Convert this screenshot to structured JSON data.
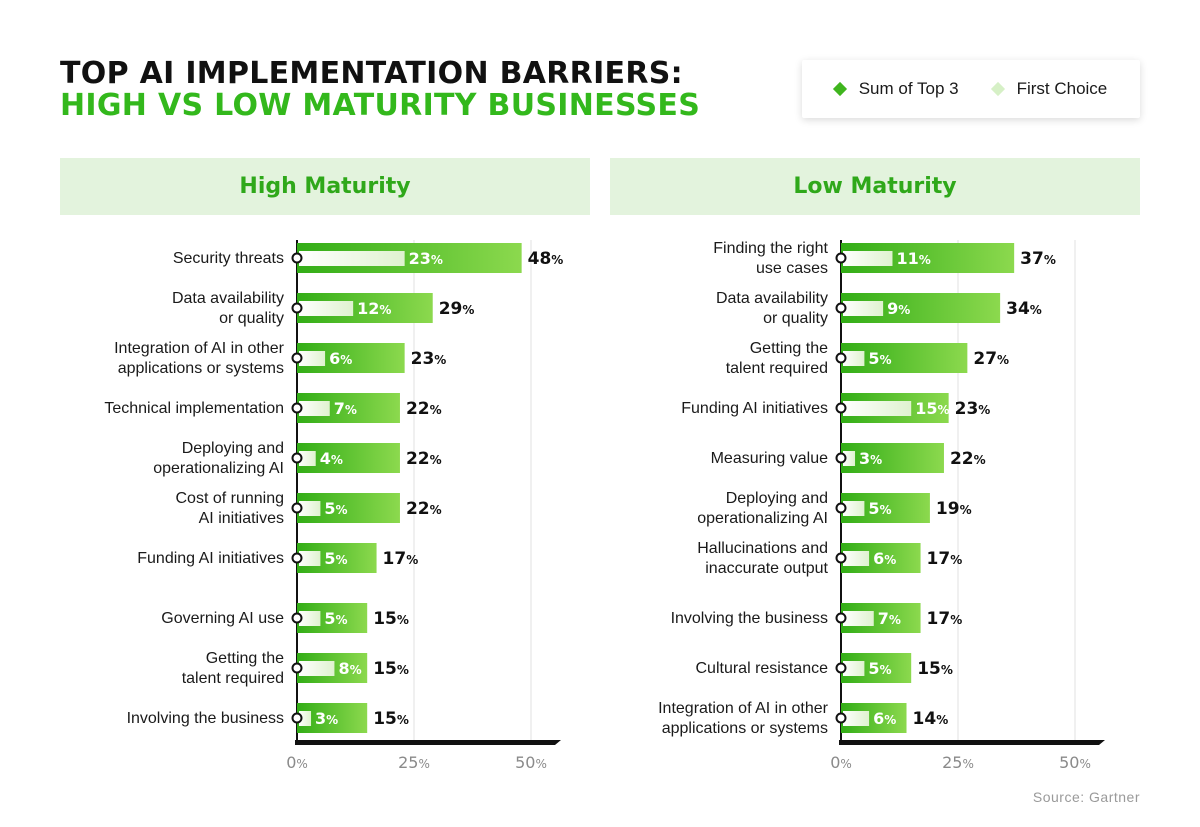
{
  "title_line1": "TOP AI IMPLEMENTATION BARRIERS:",
  "title_line2": "HIGH VS LOW MATURITY BUSINESSES",
  "legend": {
    "sum_label": "Sum of Top 3",
    "first_label": "First Choice"
  },
  "source": "Source: Gartner",
  "colors": {
    "bar_dark": "#3fb51e",
    "bar_light": "#7dd444",
    "first_choice": "#e6f5da",
    "title_green": "#33b81c",
    "header_bg": "#e3f3dd"
  },
  "chart_data": [
    {
      "type": "bar",
      "title": "High Maturity",
      "categories": [
        "Security threats",
        "Data availability\nor quality",
        "Integration of AI in other\napplications or systems",
        "Technical implementation",
        "Deploying and\noperationalizing AI",
        "Cost of running\nAI initiatives",
        "Funding AI initiatives",
        "Governing AI use",
        "Getting the\ntalent required",
        "Involving the business"
      ],
      "series": [
        {
          "name": "Sum of Top 3",
          "values": [
            48,
            29,
            23,
            22,
            22,
            22,
            17,
            15,
            15,
            15
          ]
        },
        {
          "name": "First Choice",
          "values": [
            23,
            12,
            6,
            7,
            4,
            5,
            5,
            5,
            8,
            3
          ]
        }
      ],
      "xticks": [
        "0%",
        "25%",
        "50%"
      ],
      "xlim": [
        0,
        50
      ]
    },
    {
      "type": "bar",
      "title": "Low Maturity",
      "categories": [
        "Finding the right\nuse cases",
        "Data availability\nor quality",
        "Getting the\ntalent required",
        "Funding AI initiatives",
        "Measuring value",
        "Deploying and\noperationalizing AI",
        "Hallucinations and\ninaccurate output",
        "Involving the business",
        "Cultural resistance",
        "Integration of AI in other\napplications or systems"
      ],
      "series": [
        {
          "name": "Sum of Top 3",
          "values": [
            37,
            34,
            27,
            23,
            22,
            19,
            17,
            17,
            15,
            14
          ]
        },
        {
          "name": "First Choice",
          "values": [
            11,
            9,
            5,
            15,
            3,
            5,
            6,
            7,
            5,
            6
          ]
        }
      ],
      "xticks": [
        "0%",
        "25%",
        "50%"
      ],
      "xlim": [
        0,
        50
      ]
    }
  ]
}
